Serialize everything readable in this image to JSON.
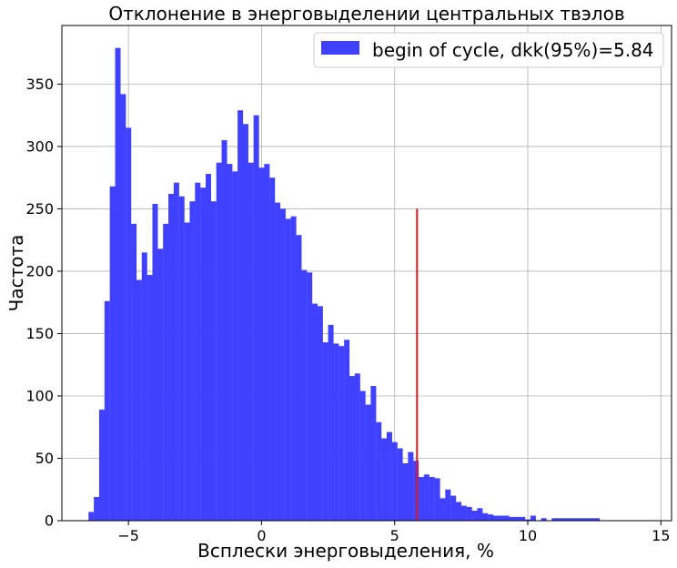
{
  "chart_data": {
    "type": "bar",
    "title": "Отклонение в энерговыделении центральных твэлов",
    "xlabel": "Всплески энерговыделения, %",
    "ylabel": "Частота",
    "xlim": [
      -7.5,
      15.4
    ],
    "ylim": [
      0,
      397
    ],
    "xticks": [
      -5,
      0,
      5,
      10,
      15
    ],
    "yticks": [
      0,
      50,
      100,
      150,
      200,
      250,
      300,
      350
    ],
    "grid": true,
    "legend_position": "top-right",
    "bin_start": -6.5,
    "bin_width": 0.2,
    "series": [
      {
        "name": "begin of cycle, dkk(95%)=5.84",
        "color": "#4040ff",
        "values": [
          7,
          19,
          89,
          176,
          268,
          379,
          342,
          315,
          238,
          193,
          215,
          197,
          254,
          218,
          238,
          262,
          271,
          260,
          239,
          256,
          271,
          267,
          278,
          256,
          287,
          305,
          286,
          280,
          329,
          318,
          287,
          325,
          283,
          286,
          275,
          255,
          250,
          242,
          244,
          229,
          201,
          199,
          174,
          172,
          143,
          157,
          142,
          140,
          145,
          116,
          118,
          104,
          93,
          108,
          79,
          66,
          71,
          63,
          58,
          46,
          55,
          48,
          35,
          37,
          35,
          34,
          18,
          25,
          20,
          15,
          12,
          11,
          8,
          10,
          6,
          5,
          4,
          4,
          4,
          3,
          3,
          3,
          1,
          4,
          0,
          2,
          0,
          2,
          2,
          2,
          2,
          2,
          2,
          2,
          2,
          2
        ]
      }
    ],
    "vline": {
      "x": 5.84,
      "y_top": 250,
      "color": "#dd1a1a"
    }
  }
}
